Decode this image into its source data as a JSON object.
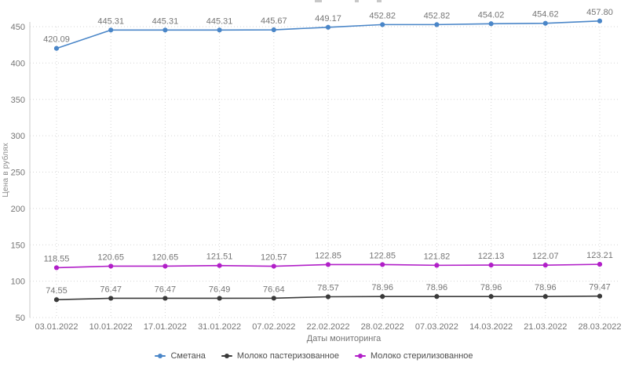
{
  "chart_data": {
    "type": "line",
    "title": "",
    "xlabel": "Даты мониторинга",
    "ylabel": "Цена в рублях",
    "x": [
      "03.01.2022",
      "10.01.2022",
      "17.01.2022",
      "31.01.2022",
      "07.02.2022",
      "22.02.2022",
      "28.02.2022",
      "07.03.2022",
      "14.03.2022",
      "21.03.2022",
      "28.03.2022"
    ],
    "series": [
      {
        "name": "Сметана",
        "color": "#4a86c8",
        "values": [
          420.09,
          445.31,
          445.31,
          445.31,
          445.67,
          449.17,
          452.82,
          452.82,
          454.02,
          454.62,
          457.8
        ]
      },
      {
        "name": "Молоко пастеризованное",
        "color": "#3a3a3a",
        "values": [
          74.55,
          76.47,
          76.47,
          76.49,
          76.64,
          78.57,
          78.96,
          78.96,
          78.96,
          78.96,
          79.47
        ]
      },
      {
        "name": "Молоко стерилизованное",
        "color": "#b11fc8",
        "values": [
          118.55,
          120.65,
          120.65,
          121.51,
          120.57,
          122.85,
          122.85,
          121.82,
          122.13,
          122.07,
          123.21
        ]
      }
    ],
    "ylim": [
      50,
      450
    ],
    "ytick_step": 50,
    "yticks": [
      "50",
      "100",
      "150",
      "200",
      "250",
      "300",
      "350",
      "400",
      "450"
    ],
    "grid": "dotted",
    "legend_position": "bottom",
    "value_labels": "shown above each point, 2 decimals"
  },
  "colors": {
    "grid": "#d6d6d6",
    "axis_line": "#c9c9c9",
    "tick_text": "#757575",
    "value_label_text": "#757575"
  }
}
